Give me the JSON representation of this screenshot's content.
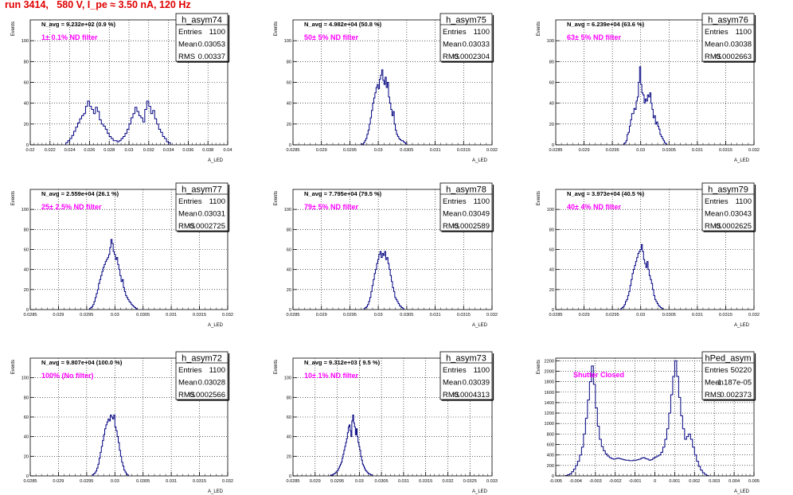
{
  "page": {
    "title": "run 3414,   580 V, I_pe ≈ 3.50 nA, 120 Hz"
  },
  "chart_data": [
    {
      "type": "histogram",
      "name": "h_asym74",
      "stats": [
        [
          "Entries",
          "1100"
        ],
        [
          "Mean",
          "0.03053"
        ],
        [
          "RMS",
          "0.00337"
        ]
      ],
      "navg": "N_avg = 9.232e+02 (0.9 %)",
      "filter": "1± 0.1% ND filter",
      "xlabel": "A_LED",
      "ylabel": "Events",
      "xlim": [
        0.02,
        0.04
      ],
      "ylim": [
        0,
        120
      ],
      "xticks": [
        "0.02",
        "0.022",
        "0.024",
        "0.026",
        "0.028",
        "0.03",
        "0.032",
        "0.034",
        "0.036",
        "0.038",
        "0.04"
      ],
      "yticks": [
        0,
        20,
        40,
        60,
        80,
        100
      ],
      "bin_start": 0.0236,
      "bin_width": 0.0002,
      "counts": [
        2,
        4,
        6,
        9,
        13,
        17,
        21,
        25,
        28,
        30,
        37,
        42,
        37,
        34,
        30,
        36,
        32,
        24,
        20,
        18,
        15,
        11,
        8,
        6,
        4,
        4,
        3,
        4,
        6,
        8,
        11,
        15,
        20,
        26,
        30,
        36,
        32,
        28,
        26,
        22,
        34,
        42,
        37,
        30,
        33,
        25,
        20,
        15,
        12,
        8,
        6,
        3,
        2
      ]
    },
    {
      "type": "histogram",
      "name": "h_asym75",
      "stats": [
        [
          "Entries",
          "1100"
        ],
        [
          "Mean",
          "0.03033"
        ],
        [
          "RMS",
          "0.0002304"
        ]
      ],
      "navg": "N_avg = 4.982e+04 (50.8 %)",
      "filter": "50± 5% ND filter",
      "xlabel": "A_LED",
      "ylabel": "Events",
      "xlim": [
        0.0285,
        0.032
      ],
      "ylim": [
        0,
        120
      ],
      "xticks": [
        "0.0285",
        "0.029",
        "0.0295",
        "0.03",
        "0.0305",
        "0.031",
        "0.0315",
        "0.032"
      ],
      "yticks": [
        0,
        20,
        40,
        60,
        80,
        100
      ],
      "bin_start": 0.0297,
      "bin_width": 2e-05,
      "counts": [
        1,
        0,
        2,
        4,
        6,
        10,
        14,
        20,
        26,
        33,
        40,
        45,
        50,
        55,
        58,
        54,
        63,
        67,
        72,
        62,
        58,
        65,
        55,
        60,
        46,
        40,
        34,
        28,
        32,
        20,
        14,
        10,
        8,
        6,
        5,
        4,
        4,
        3,
        2,
        1
      ]
    },
    {
      "type": "histogram",
      "name": "h_asym76",
      "stats": [
        [
          "Entries",
          "1100"
        ],
        [
          "Mean",
          "0.03038"
        ],
        [
          "RMS",
          "0.0002663"
        ]
      ],
      "navg": "N_avg = 6.239e+04 (63.6 %)",
      "filter": "63± 5% ND filter",
      "xlabel": "A_LED",
      "ylabel": "Events",
      "xlim": [
        0.0285,
        0.032
      ],
      "ylim": [
        0,
        120
      ],
      "xticks": [
        "0.0285",
        "0.029",
        "0.0295",
        "0.03",
        "0.0305",
        "0.031",
        "0.0315",
        "0.032"
      ],
      "yticks": [
        0,
        20,
        40,
        60,
        80,
        100
      ],
      "bin_start": 0.0297,
      "bin_width": 2e-05,
      "counts": [
        1,
        2,
        4,
        10,
        12,
        18,
        24,
        30,
        30,
        35,
        34,
        42,
        46,
        60,
        75,
        58,
        50,
        48,
        40,
        44,
        42,
        48,
        46,
        50,
        40,
        34,
        26,
        28,
        20,
        22,
        18,
        15,
        10,
        8,
        6,
        4,
        2,
        1
      ]
    },
    {
      "type": "histogram",
      "name": "h_asym77",
      "stats": [
        [
          "Entries",
          "1100"
        ],
        [
          "Mean",
          "0.03031"
        ],
        [
          "RMS",
          "0.0002725"
        ]
      ],
      "navg": "N_avg = 2.559e+04 (26.1 %)",
      "filter": "25± 2.5% ND filter",
      "xlabel": "A_LED",
      "ylabel": "Events",
      "xlim": [
        0.0285,
        0.032
      ],
      "ylim": [
        0,
        120
      ],
      "xticks": [
        "0.0285",
        "0.029",
        "0.0295",
        "0.03",
        "0.0305",
        "0.031",
        "0.0315",
        "0.032"
      ],
      "yticks": [
        0,
        20,
        40,
        60,
        80,
        100
      ],
      "bin_start": 0.02955,
      "bin_width": 2e-05,
      "counts": [
        1,
        2,
        3,
        5,
        8,
        12,
        16,
        20,
        26,
        30,
        34,
        38,
        42,
        45,
        48,
        50,
        52,
        55,
        62,
        70,
        66,
        58,
        55,
        50,
        52,
        45,
        40,
        34,
        28,
        30,
        22,
        18,
        14,
        12,
        10,
        8,
        7,
        5,
        4,
        3,
        2,
        1
      ]
    },
    {
      "type": "histogram",
      "name": "h_asym78",
      "stats": [
        [
          "Entries",
          "1100"
        ],
        [
          "Mean",
          "0.03049"
        ],
        [
          "RMS",
          "0.0002589"
        ]
      ],
      "navg": "N_avg = 7.795e+04 (79.5 %)",
      "filter": "79± 5% ND filter",
      "xlabel": "A_LED",
      "ylabel": "Events",
      "xlim": [
        0.0285,
        0.032
      ],
      "ylim": [
        0,
        120
      ],
      "xticks": [
        "0.0285",
        "0.029",
        "0.0295",
        "0.03",
        "0.0305",
        "0.031",
        "0.0315",
        "0.032"
      ],
      "yticks": [
        0,
        20,
        40,
        60,
        80,
        100
      ],
      "bin_start": 0.02975,
      "bin_width": 2e-05,
      "counts": [
        1,
        2,
        3,
        5,
        8,
        12,
        18,
        24,
        30,
        36,
        40,
        46,
        50,
        55,
        58,
        52,
        56,
        54,
        58,
        50,
        52,
        46,
        40,
        34,
        28,
        22,
        18,
        12,
        10,
        8,
        6,
        4,
        3,
        2,
        1
      ]
    },
    {
      "type": "histogram",
      "name": "h_asym79",
      "stats": [
        [
          "Entries",
          "1100"
        ],
        [
          "Mean",
          "0.03043"
        ],
        [
          "RMS",
          "0.0002625"
        ]
      ],
      "navg": "N_avg = 3.973e+04 (40.5 %)",
      "filter": "40± 4% ND filter",
      "xlabel": "A_LED",
      "ylabel": "Events",
      "xlim": [
        0.0285,
        0.032
      ],
      "ylim": [
        0,
        120
      ],
      "xticks": [
        "0.0285",
        "0.029",
        "0.0295",
        "0.03",
        "0.0305",
        "0.031",
        "0.0315",
        "0.032"
      ],
      "yticks": [
        0,
        20,
        40,
        60,
        80,
        100
      ],
      "bin_start": 0.02965,
      "bin_width": 2e-05,
      "counts": [
        1,
        2,
        3,
        5,
        8,
        10,
        14,
        18,
        24,
        30,
        36,
        40,
        44,
        48,
        52,
        56,
        58,
        60,
        65,
        58,
        50,
        46,
        42,
        48,
        40,
        34,
        30,
        26,
        20,
        14,
        10,
        8,
        6,
        4,
        3,
        2,
        1
      ]
    },
    {
      "type": "histogram",
      "name": "h_asym72",
      "stats": [
        [
          "Entries",
          "1100"
        ],
        [
          "Mean",
          "0.03028"
        ],
        [
          "RMS",
          "0.0002566"
        ]
      ],
      "navg": "N_avg = 9.807e+04 (100.0 %)",
      "filter": "100% (No filter)",
      "xlabel": "A_LED",
      "ylabel": "Events",
      "xlim": [
        0.0285,
        0.032
      ],
      "ylim": [
        0,
        120
      ],
      "xticks": [
        "0.0285",
        "0.029",
        "0.0295",
        "0.03",
        "0.0305",
        "0.031",
        "0.0315",
        "0.032"
      ],
      "yticks": [
        0,
        20,
        40,
        60,
        80,
        100
      ],
      "bin_start": 0.0296,
      "bin_width": 2e-05,
      "counts": [
        1,
        2,
        3,
        5,
        8,
        12,
        18,
        24,
        30,
        36,
        42,
        48,
        52,
        55,
        58,
        56,
        62,
        60,
        58,
        62,
        50,
        46,
        40,
        34,
        26,
        20,
        14,
        10,
        6,
        4,
        2,
        1
      ]
    },
    {
      "type": "histogram",
      "name": "h_asym73",
      "stats": [
        [
          "Entries",
          "1100"
        ],
        [
          "Mean",
          "0.03039"
        ],
        [
          "RMS",
          "0.0004313"
        ]
      ],
      "navg": "N_avg = 9.312e+03 ( 9.5 %)",
      "filter": "10± 1% ND filter",
      "xlabel": "A_LED",
      "ylabel": "Events",
      "xlim": [
        0.0285,
        0.033
      ],
      "ylim": [
        0,
        120
      ],
      "xticks": [
        "0.0285",
        "0.029",
        "0.0295",
        "0.03",
        "0.0305",
        "0.031",
        "0.0315",
        "0.032",
        "0.0325",
        "0.033"
      ],
      "yticks": [
        0,
        20,
        40,
        60,
        80,
        100
      ],
      "bin_start": 0.02935,
      "bin_width": 2e-05,
      "counts": [
        1,
        0,
        1,
        2,
        2,
        3,
        4,
        5,
        6,
        8,
        10,
        12,
        14,
        18,
        22,
        26,
        30,
        34,
        38,
        44,
        50,
        52,
        46,
        40,
        56,
        62,
        54,
        50,
        42,
        48,
        40,
        34,
        30,
        26,
        20,
        16,
        12,
        10,
        8,
        6,
        5,
        4,
        3,
        2,
        2,
        1,
        1
      ]
    },
    {
      "type": "histogram",
      "name": "hPed_asym",
      "stats": [
        [
          "Entries",
          "50220"
        ],
        [
          "Mean",
          "-1.187e-05"
        ],
        [
          "RMS",
          "0.002373"
        ]
      ],
      "filter": "Shutter Closed",
      "xlabel": "A_LED",
      "ylabel": "Events",
      "xlim": [
        -0.005,
        0.005
      ],
      "ylim": [
        0,
        2250
      ],
      "xticks": [
        "-0.005",
        "-0.004",
        "-0.003",
        "-0.002",
        "-0.001",
        "0",
        "0.001",
        "0.002",
        "0.003",
        "0.004",
        "0.005"
      ],
      "yticks": [
        0,
        200,
        400,
        600,
        800,
        1000,
        1200,
        1400,
        1600,
        1800,
        2000,
        2200
      ],
      "bin_start": -0.0045,
      "bin_width": 0.0001,
      "counts": [
        10,
        20,
        40,
        80,
        130,
        200,
        280,
        400,
        550,
        800,
        1100,
        1450,
        1800,
        2100,
        1750,
        1300,
        950,
        700,
        560,
        480,
        420,
        380,
        350,
        330,
        320,
        330,
        340,
        330,
        320,
        310,
        300,
        300,
        290,
        290,
        300,
        300,
        310,
        320,
        340,
        350,
        330,
        320,
        300,
        310,
        340,
        360,
        380,
        400,
        450,
        550,
        700,
        900,
        1200,
        1550,
        1900,
        2200,
        1900,
        1500,
        1150,
        900,
        700,
        750,
        800,
        700,
        550,
        400,
        280,
        180,
        110,
        60,
        30,
        10
      ]
    }
  ]
}
